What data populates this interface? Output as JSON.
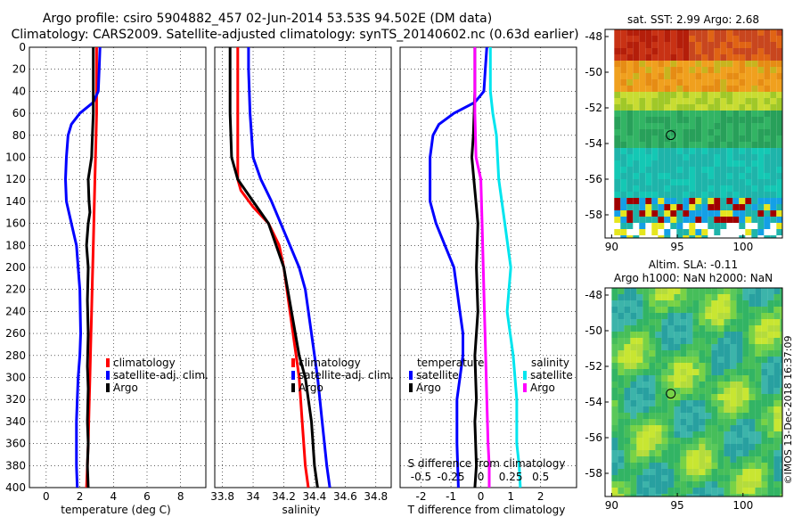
{
  "header": {
    "line1": "Argo profile: csiro 5904882_457 02-Jun-2014 53.53S 94.502E (DM data)",
    "line2": "Climatology: CARS2009. Satellite-adjusted climatology: synTS_20140602.nc (0.63d earlier)"
  },
  "watermark": "©IMOS 13-Dec-2018 16:37:09",
  "colors": {
    "climatology": "#ff0000",
    "satellite": "#0000ff",
    "argo": "#000000",
    "sal_satellite": "#00e5ee",
    "sal_argo": "#ff00ff"
  },
  "chart_data": [
    {
      "type": "line",
      "xlabel": "temperature (deg C)",
      "xlim": [
        -1,
        9.5
      ],
      "xticks": [
        "0",
        "2",
        "4",
        "6",
        "8"
      ],
      "ylim": [
        0,
        400
      ],
      "yticks": [
        "0",
        "20",
        "40",
        "60",
        "80",
        "100",
        "120",
        "140",
        "160",
        "180",
        "200",
        "220",
        "240",
        "260",
        "280",
        "300",
        "320",
        "340",
        "360",
        "380",
        "400"
      ],
      "legend": [
        "climatology",
        "satellite-adj. clim.",
        "Argo"
      ],
      "series": [
        {
          "name": "climatology",
          "x": [
            3.0,
            3.0,
            3.0,
            2.95,
            2.9,
            2.85,
            2.8,
            2.75,
            2.7,
            2.65,
            2.6,
            2.55,
            2.5,
            2.45,
            2.4
          ],
          "y": [
            0,
            30,
            60,
            90,
            120,
            150,
            180,
            210,
            240,
            270,
            300,
            330,
            360,
            380,
            400
          ]
        },
        {
          "name": "satellite-adj. clim.",
          "x": [
            3.2,
            3.15,
            3.1,
            2.8,
            2.0,
            1.5,
            1.3,
            1.2,
            1.15,
            1.2,
            1.5,
            1.8,
            2.0,
            2.05,
            2.0,
            1.9,
            1.85,
            1.8,
            1.8,
            1.85
          ],
          "y": [
            0,
            20,
            40,
            50,
            60,
            70,
            80,
            100,
            120,
            140,
            160,
            180,
            220,
            260,
            280,
            300,
            320,
            340,
            380,
            400
          ]
        },
        {
          "name": "Argo",
          "x": [
            2.8,
            2.8,
            2.8,
            2.75,
            2.7,
            2.5,
            2.55,
            2.6,
            2.5,
            2.4,
            2.5,
            2.45,
            2.5,
            2.45,
            2.5,
            2.45,
            2.5,
            2.45,
            2.5
          ],
          "y": [
            0,
            40,
            60,
            80,
            100,
            120,
            140,
            150,
            160,
            180,
            200,
            230,
            260,
            290,
            310,
            340,
            360,
            380,
            400
          ]
        }
      ]
    },
    {
      "type": "line",
      "xlabel": "salinity",
      "xlim": [
        33.75,
        34.9
      ],
      "xticks": [
        "33.8",
        "34",
        "34.2",
        "34.4",
        "34.6",
        "34.8"
      ],
      "ylim": [
        0,
        400
      ],
      "legend": [
        "climatology",
        "satellite-adj. clim.",
        "Argo"
      ],
      "series": [
        {
          "name": "climatology",
          "x": [
            33.9,
            33.9,
            33.9,
            33.9,
            33.9,
            33.92,
            34.0,
            34.1,
            34.17,
            34.2,
            34.24,
            34.28,
            34.3,
            34.32,
            34.34,
            34.36
          ],
          "y": [
            0,
            40,
            80,
            100,
            120,
            130,
            145,
            160,
            180,
            200,
            240,
            280,
            300,
            340,
            380,
            400
          ]
        },
        {
          "name": "satellite-adj. clim.",
          "x": [
            33.97,
            33.97,
            33.98,
            34.0,
            34.05,
            34.12,
            34.18,
            34.24,
            34.3,
            34.34,
            34.38,
            34.42,
            34.45,
            34.48,
            34.5
          ],
          "y": [
            0,
            20,
            60,
            100,
            120,
            140,
            160,
            180,
            200,
            220,
            260,
            300,
            340,
            380,
            400
          ]
        },
        {
          "name": "Argo",
          "x": [
            33.85,
            33.85,
            33.86,
            33.9,
            34.0,
            34.1,
            34.15,
            34.2,
            34.25,
            34.3,
            34.34,
            34.38,
            34.4,
            34.42
          ],
          "y": [
            0,
            60,
            100,
            120,
            140,
            160,
            180,
            200,
            240,
            280,
            300,
            340,
            380,
            400
          ]
        }
      ]
    },
    {
      "type": "line",
      "xlabel": "T difference from climatology",
      "xlabel2": "S difference from climatology",
      "xlim": [
        -2.7,
        3.2
      ],
      "xticks": [
        "-2",
        "-1",
        "0",
        "1",
        "2"
      ],
      "xticks2": [
        "-0.5",
        "-0.25",
        "0",
        "0.25",
        "0.5"
      ],
      "ylim": [
        0,
        400
      ],
      "legend_temperature": {
        "title": "temperature",
        "entries": [
          "satellite",
          "Argo"
        ]
      },
      "legend_salinity": {
        "title": "salinity",
        "entries": [
          "satellite",
          "Argo"
        ]
      },
      "series": [
        {
          "name": "temperature satellite",
          "x": [
            0.2,
            0.15,
            0.1,
            -0.2,
            -0.9,
            -1.4,
            -1.6,
            -1.7,
            -1.7,
            -1.5,
            -1.2,
            -0.9,
            -0.7,
            -0.6,
            -0.6,
            -0.8,
            -0.8,
            -0.75
          ],
          "y": [
            0,
            20,
            40,
            50,
            60,
            70,
            80,
            100,
            140,
            160,
            180,
            200,
            240,
            260,
            280,
            320,
            360,
            400
          ]
        },
        {
          "name": "temperature Argo",
          "x": [
            -0.2,
            -0.2,
            -0.25,
            -0.3,
            -0.2,
            -0.1,
            -0.15,
            -0.1,
            -0.2,
            -0.15,
            -0.2,
            -0.15,
            -0.2
          ],
          "y": [
            0,
            40,
            80,
            100,
            130,
            160,
            200,
            240,
            280,
            320,
            340,
            380,
            400
          ]
        },
        {
          "name": "salinity satellite",
          "x": [
            0.08,
            0.08,
            0.1,
            0.13,
            0.15,
            0.2,
            0.25,
            0.22,
            0.27,
            0.3,
            0.3,
            0.32,
            0.33
          ],
          "y": [
            0,
            40,
            60,
            80,
            120,
            160,
            200,
            240,
            280,
            320,
            360,
            380,
            400
          ]
        },
        {
          "name": "salinity Argo",
          "x": [
            -0.05,
            -0.05,
            -0.04,
            0.0,
            0.01,
            0.02,
            0.03,
            0.04,
            0.05,
            0.06,
            0.07,
            0.07
          ],
          "y": [
            0,
            60,
            100,
            120,
            160,
            200,
            240,
            280,
            320,
            360,
            380,
            400
          ]
        }
      ]
    },
    {
      "type": "heatmap",
      "title": "sat. SST: 2.99  Argo: 2.68",
      "xticks": [
        "90",
        "95",
        "100"
      ],
      "yticks": [
        "-48",
        "-50",
        "-52",
        "-54",
        "-56",
        "-58"
      ],
      "xlim": [
        89.5,
        103
      ],
      "ylim": [
        -59.3,
        -47.6
      ],
      "marker": {
        "lon": 94.5,
        "lat": -53.53
      }
    },
    {
      "type": "heatmap",
      "title": "Altim. SLA: -0.11",
      "subtitle": "Argo h1000: NaN h2000: NaN",
      "xticks": [
        "90",
        "95",
        "100"
      ],
      "yticks": [
        "-48",
        "-50",
        "-52",
        "-54",
        "-56",
        "-58"
      ],
      "xlim": [
        89.5,
        103
      ],
      "ylim": [
        -59.3,
        -47.6
      ],
      "marker": {
        "lon": 94.5,
        "lat": -53.53
      }
    }
  ]
}
